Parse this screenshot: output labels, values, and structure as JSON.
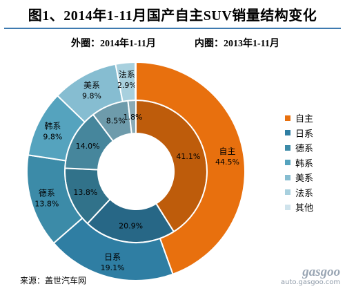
{
  "title": "图1、2014年1-11月国产自主SUV销量结构变化",
  "subtitle_outer": "外圈：2014年1-11月",
  "subtitle_inner": "内圈：2013年1-11月",
  "source": "来源：盖世汽车网",
  "watermark": {
    "logo": "gasgoo",
    "url": "auto.gasgoo.com"
  },
  "colors": {
    "自主": "#e8700e",
    "日系": "#2f7ea3",
    "德系": "#3c8ba8",
    "韩系": "#55a3be",
    "美系": "#86bdd1",
    "法系": "#a8d0de",
    "其他": "#cfe3ec",
    "inner_shade": 0.18
  },
  "chart_data": {
    "type": "pie",
    "categories": [
      "自主",
      "日系",
      "德系",
      "韩系",
      "美系",
      "法系",
      "其他"
    ],
    "series": [
      {
        "name": "2014年1-11月",
        "values": [
          44.5,
          19.1,
          13.8,
          9.8,
          9.8,
          2.9,
          0.1
        ],
        "labels": [
          "44.5%",
          "19.1%",
          "13.8%",
          "9.8%",
          "9.8%",
          "2.9%",
          ""
        ]
      },
      {
        "name": "2013年1-11月",
        "values": [
          41.1,
          20.9,
          13.8,
          14.0,
          8.5,
          1.8,
          0.0
        ],
        "labels": [
          "41.1%",
          "20.9%",
          "13.8%",
          "14.0%",
          "8.5%",
          "1.8%",
          ""
        ]
      }
    ],
    "legend": [
      "自主",
      "日系",
      "德系",
      "韩系",
      "美系",
      "法系",
      "其他"
    ],
    "legend_position": "right"
  }
}
